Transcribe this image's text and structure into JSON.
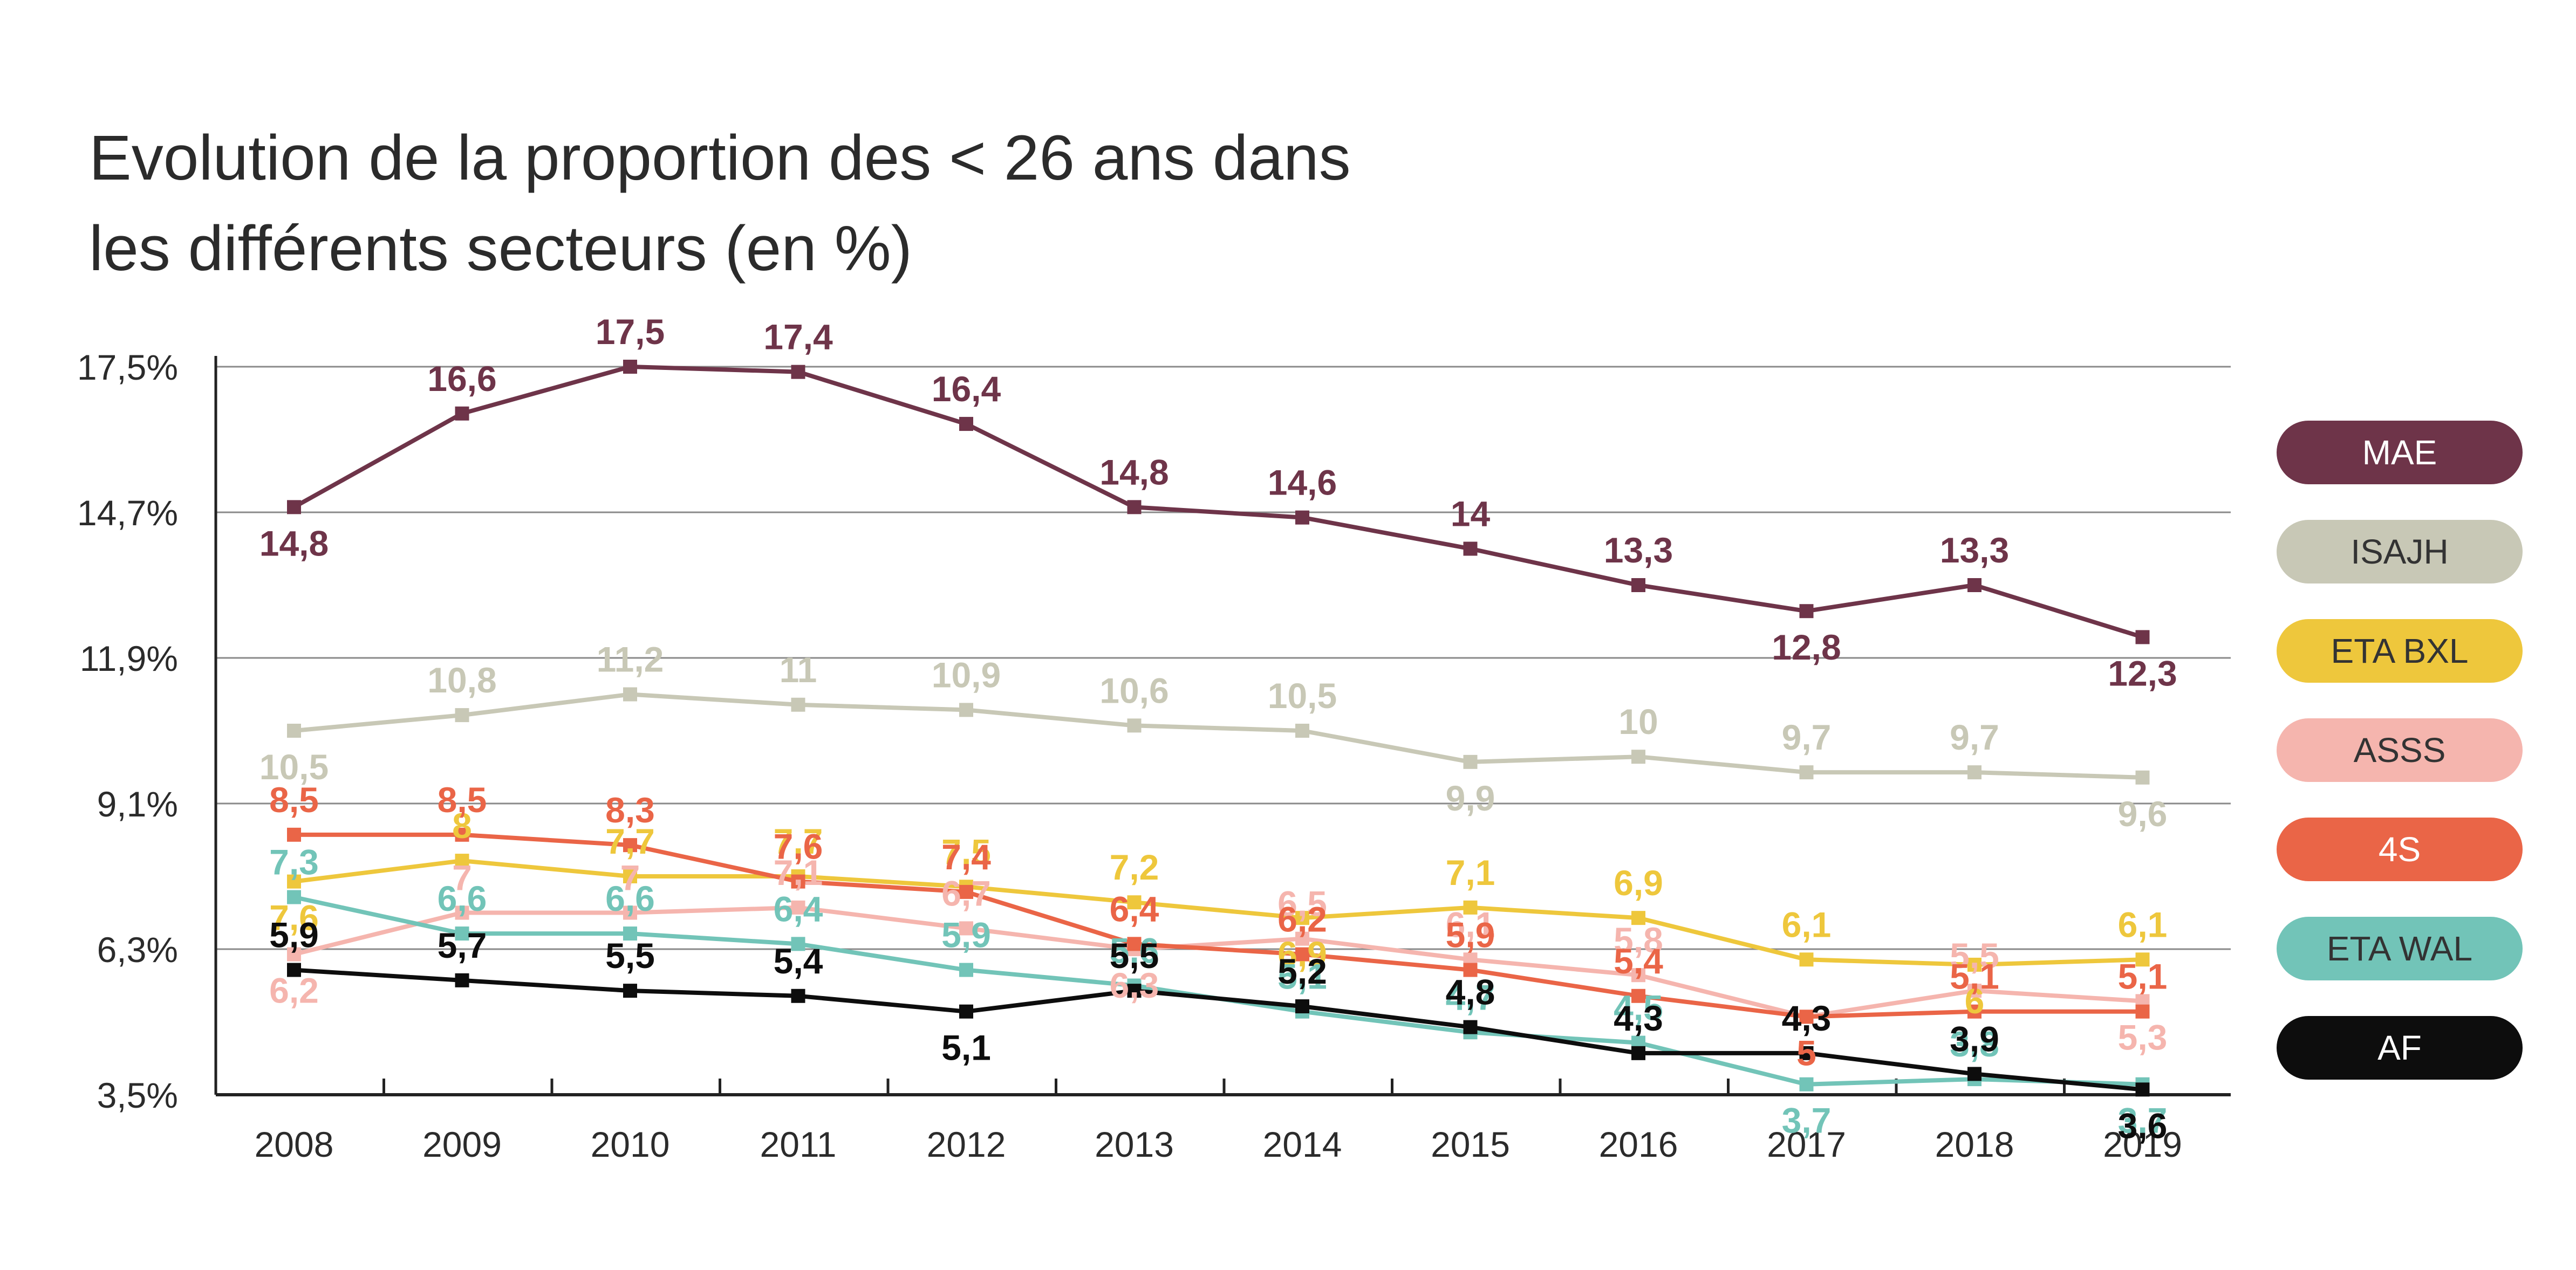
{
  "chart_data": {
    "type": "line",
    "title": [
      "Evolution de la proportion des < 26 ans dans",
      "les différents secteurs (en %)"
    ],
    "categories": [
      "2008",
      "2009",
      "2010",
      "2011",
      "2012",
      "2013",
      "2014",
      "2015",
      "2016",
      "2017",
      "2018",
      "2019"
    ],
    "y_ticks": [
      "17,5%",
      "14,7%",
      "11,9%",
      "9,1%",
      "6,3%",
      "3,5%"
    ],
    "y_tick_values": [
      17.5,
      14.7,
      11.9,
      9.1,
      6.3,
      3.5
    ],
    "ylim": [
      3.5,
      17.5
    ],
    "grid": true,
    "legend_position": "right",
    "series": [
      {
        "name": "MAE",
        "color": "#6e3449",
        "text_color": "#ffffff",
        "values": [
          14.8,
          16.6,
          17.5,
          17.4,
          16.4,
          14.8,
          14.6,
          14.0,
          13.3,
          12.8,
          13.3,
          12.3
        ],
        "labels": [
          "14,8",
          "16,6",
          "17,5",
          "17,4",
          "16,4",
          "14,8",
          "14,6",
          "14",
          "13,3",
          "12,8",
          "13,3",
          "12,3"
        ]
      },
      {
        "name": "ISAJH",
        "color": "#c8c8b6",
        "text_color": "#333333",
        "values": [
          10.5,
          10.8,
          11.2,
          11.0,
          10.9,
          10.6,
          10.5,
          9.9,
          10.0,
          9.7,
          9.7,
          9.6
        ],
        "labels": [
          "10,5",
          "10,8",
          "11,2",
          "11",
          "10,9",
          "10,6",
          "10,5",
          "9,9",
          "10",
          "9,7",
          "9,7",
          "9,6"
        ]
      },
      {
        "name": "ETA BXL",
        "color": "#eec73c",
        "text_color": "#333333",
        "values": [
          7.6,
          8.0,
          7.7,
          7.7,
          7.5,
          7.2,
          6.9,
          7.1,
          6.9,
          6.1,
          6.0,
          6.1
        ],
        "labels": [
          "7,6",
          "8",
          "7,7",
          "7,7",
          "7,5",
          "7,2",
          "6,9",
          "7,1",
          "6,9",
          "6,1",
          "6",
          "6,1"
        ]
      },
      {
        "name": "ASSS",
        "color": "#f5b5ae",
        "text_color": "#333333",
        "values": [
          6.2,
          7.0,
          7.0,
          7.1,
          6.7,
          6.3,
          6.5,
          6.1,
          5.8,
          5.0,
          5.5,
          5.3
        ],
        "labels": [
          "6,2",
          "7",
          "7",
          "7,1",
          "6,7",
          "6,3",
          "6,5",
          "6,1",
          "5,8",
          "5",
          "5,5",
          "5,3"
        ]
      },
      {
        "name": "4S",
        "color": "#ea6547",
        "text_color": "#ffffff",
        "values": [
          8.5,
          8.5,
          8.3,
          7.6,
          7.4,
          6.4,
          6.2,
          5.9,
          5.4,
          5.0,
          5.1,
          5.1
        ],
        "labels": [
          "8,5",
          "8,5",
          "8,3",
          "7,6",
          "7,4",
          "6,4",
          "6,2",
          "5,9",
          "5,4",
          "5",
          "5,1",
          "5,1"
        ]
      },
      {
        "name": "ETA WAL",
        "color": "#72c4b8",
        "text_color": "#333333",
        "values": [
          7.3,
          6.6,
          6.6,
          6.4,
          5.9,
          5.6,
          5.1,
          4.7,
          4.5,
          3.7,
          3.8,
          3.7
        ],
        "labels": [
          "7,3",
          "6,6",
          "6,6",
          "6,4",
          "5,9",
          "5,6",
          "5,1",
          "4,7",
          "4,5",
          "3,7",
          "3,8",
          "3,7"
        ]
      },
      {
        "name": "AF",
        "color": "#0d0d0d",
        "text_color": "#ffffff",
        "values": [
          5.9,
          5.7,
          5.5,
          5.4,
          5.1,
          5.5,
          5.2,
          4.8,
          4.3,
          4.3,
          3.9,
          3.6
        ],
        "labels": [
          "5,9",
          "5,7",
          "5,5",
          "5,4",
          "5,1",
          "5,5",
          "5,2",
          "4,8",
          "4,3",
          "4,3",
          "3,9",
          "3,6"
        ]
      }
    ]
  }
}
